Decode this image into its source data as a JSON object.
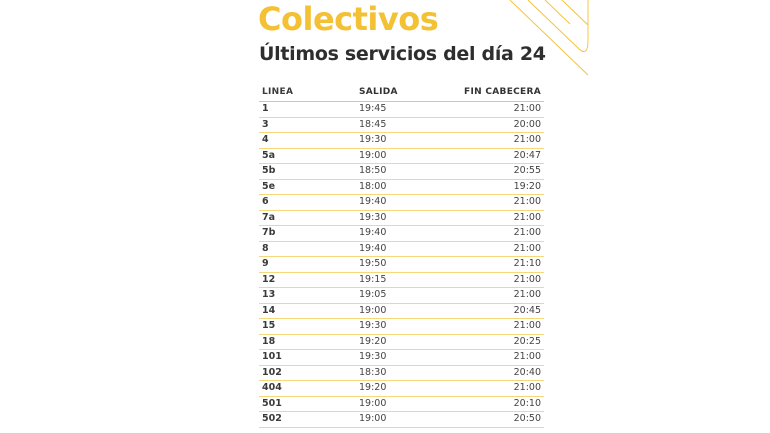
{
  "title": "Colectivos",
  "subtitle": "Últimos servicios del día 24",
  "colors": {
    "accent": "#f4c134",
    "text": "#2e2e2e"
  },
  "table": {
    "headers": [
      "LINEA",
      "SALIDA",
      "FIN CABECERA"
    ],
    "rows": [
      [
        "1",
        "19:45",
        "21:00"
      ],
      [
        "3",
        "18:45",
        "20:00"
      ],
      [
        "4",
        "19:30",
        "21:00"
      ],
      [
        "5a",
        "19:00",
        "20:47"
      ],
      [
        "5b",
        "18:50",
        "20:55"
      ],
      [
        "5e",
        "18:00",
        "19:20"
      ],
      [
        "6",
        "19:40",
        "21:00"
      ],
      [
        "7a",
        "19:30",
        "21:00"
      ],
      [
        "7b",
        "19:40",
        "21:00"
      ],
      [
        "8",
        "19:40",
        "21:00"
      ],
      [
        "9",
        "19:50",
        "21:10"
      ],
      [
        "12",
        "19:15",
        "21:00"
      ],
      [
        "13",
        "19:05",
        "21:00"
      ],
      [
        "14",
        "19:00",
        "20:45"
      ],
      [
        "15",
        "19:30",
        "21:00"
      ],
      [
        "18",
        "19:20",
        "20:25"
      ],
      [
        "101",
        "19:30",
        "21:00"
      ],
      [
        "102",
        "18:30",
        "20:40"
      ],
      [
        "404",
        "19:20",
        "21:00"
      ],
      [
        "501",
        "19:00",
        "20:10"
      ],
      [
        "502",
        "19:00",
        "20:50"
      ]
    ]
  }
}
